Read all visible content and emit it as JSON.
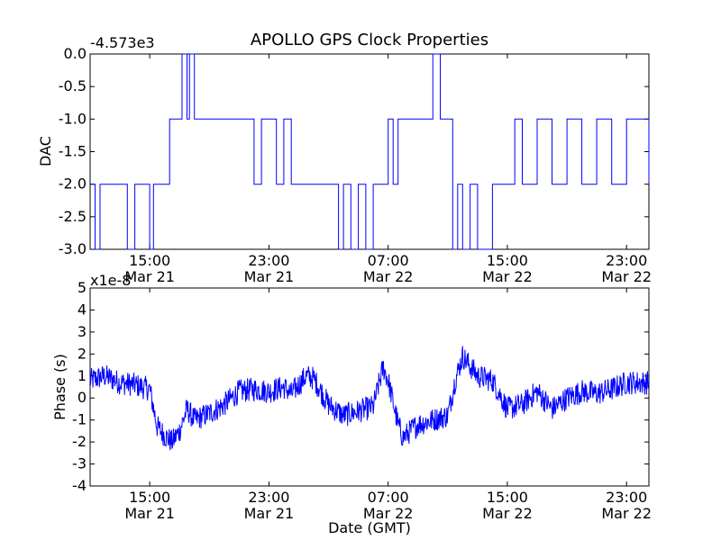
{
  "figure": {
    "title": "APOLLO GPS Clock Properties",
    "xlabel": "Date (GMT)"
  },
  "chart_data": [
    {
      "type": "line",
      "title": "APOLLO GPS Clock Properties",
      "ylabel": "DAC",
      "offset_text": "-4.573e3",
      "x_range": [
        "Mar 21 11:00",
        "Mar 23 00:30"
      ],
      "ylim": [
        -3.0,
        0.0
      ],
      "yticks": [
        0.0,
        -0.5,
        -1.0,
        -1.5,
        -2.0,
        -2.5,
        -3.0
      ],
      "ytick_labels": [
        "0.0",
        "-0.5",
        "-1.0",
        "-1.5",
        "-2.0",
        "-2.5",
        "-3.0"
      ],
      "xticks": [
        {
          "time": "15:00",
          "date": "Mar 21"
        },
        {
          "time": "23:00",
          "date": "Mar 21"
        },
        {
          "time": "07:00",
          "date": "Mar 22"
        },
        {
          "time": "15:00",
          "date": "Mar 22"
        },
        {
          "time": "23:00",
          "date": "Mar 22"
        }
      ],
      "grid": false,
      "series": [
        {
          "color": "#0000ff",
          "x": [
            "Mar 21 11:00",
            "Mar 21 11:20",
            "Mar 21 11:40",
            "Mar 21 12:10",
            "Mar 21 13:30",
            "Mar 21 14:00",
            "Mar 21 14:30",
            "Mar 21 15:00",
            "Mar 21 15:15",
            "Mar 21 16:00",
            "Mar 21 16:20",
            "Mar 21 17:00",
            "Mar 21 17:10",
            "Mar 21 17:30",
            "Mar 21 17:40",
            "Mar 21 18:00",
            "Mar 21 21:30",
            "Mar 21 22:00",
            "Mar 21 22:30",
            "Mar 21 23:00",
            "Mar 21 23:30",
            "Mar 22 00:00",
            "Mar 22 00:30",
            "Mar 22 01:00",
            "Mar 22 01:30",
            "Mar 22 02:00",
            "Mar 22 03:00",
            "Mar 22 03:40",
            "Mar 22 04:00",
            "Mar 22 04:30",
            "Mar 22 05:00",
            "Mar 22 05:30",
            "Mar 22 06:00",
            "Mar 22 06:40",
            "Mar 22 07:00",
            "Mar 22 07:20",
            "Mar 22 07:40",
            "Mar 22 08:00",
            "Mar 22 08:30",
            "Mar 22 09:00",
            "Mar 22 09:40",
            "Mar 22 10:00",
            "Mar 22 10:30",
            "Mar 22 11:00",
            "Mar 22 11:20",
            "Mar 22 11:40",
            "Mar 22 12:00",
            "Mar 22 12:30",
            "Mar 22 13:00",
            "Mar 22 14:00",
            "Mar 22 15:00",
            "Mar 22 15:30",
            "Mar 22 16:00",
            "Mar 22 17:00",
            "Mar 22 18:00",
            "Mar 22 19:00",
            "Mar 22 20:00",
            "Mar 22 21:00",
            "Mar 22 22:00",
            "Mar 22 23:00",
            "Mar 23 00:30"
          ],
          "y": [
            -2.0,
            -3.0,
            -2.0,
            -2.0,
            -3.0,
            -2.0,
            -2.0,
            -3.0,
            -2.0,
            -2.0,
            -1.0,
            -1.0,
            0.0,
            -1.0,
            0.0,
            -1.0,
            -1.0,
            -2.0,
            -1.0,
            -1.0,
            -2.0,
            -1.0,
            -2.0,
            -2.0,
            -2.0,
            -2.0,
            -2.0,
            -3.0,
            -2.0,
            -3.0,
            -2.0,
            -3.0,
            -2.0,
            -2.0,
            -1.0,
            -2.0,
            -1.0,
            -1.0,
            -1.0,
            -1.0,
            -1.0,
            0.0,
            -1.0,
            -1.0,
            -3.0,
            -2.0,
            -3.0,
            -2.0,
            -3.0,
            -2.0,
            -2.0,
            -1.0,
            -2.0,
            -1.0,
            -2.0,
            -1.0,
            -2.0,
            -1.0,
            -2.0,
            -1.0,
            -2.0
          ]
        }
      ]
    },
    {
      "type": "line",
      "xlabel": "Date (GMT)",
      "ylabel": "Phase (s)",
      "offset_text": "x1e-8",
      "x_range": [
        "Mar 21 11:00",
        "Mar 23 00:30"
      ],
      "ylim": [
        -4,
        5
      ],
      "yticks": [
        5,
        4,
        3,
        2,
        1,
        0,
        -1,
        -2,
        -3,
        -4
      ],
      "ytick_labels": [
        "5",
        "4",
        "3",
        "2",
        "1",
        "0",
        "-1",
        "-2",
        "-3",
        "-4"
      ],
      "xticks": [
        {
          "time": "15:00",
          "date": "Mar 21"
        },
        {
          "time": "23:00",
          "date": "Mar 21"
        },
        {
          "time": "07:00",
          "date": "Mar 22"
        },
        {
          "time": "15:00",
          "date": "Mar 22"
        },
        {
          "time": "23:00",
          "date": "Mar 22"
        }
      ],
      "grid": false,
      "series": [
        {
          "color": "#0000ff",
          "x": [
            "Mar 21 11:00",
            "Mar 21 12:00",
            "Mar 21 13:00",
            "Mar 21 14:00",
            "Mar 21 15:00",
            "Mar 21 15:30",
            "Mar 21 16:00",
            "Mar 21 16:30",
            "Mar 21 17:00",
            "Mar 21 17:30",
            "Mar 21 18:00",
            "Mar 21 19:00",
            "Mar 21 20:00",
            "Mar 21 21:00",
            "Mar 21 22:00",
            "Mar 21 23:00",
            "Mar 22 00:00",
            "Mar 22 00:30",
            "Mar 22 01:00",
            "Mar 22 01:30",
            "Mar 22 02:00",
            "Mar 22 03:00",
            "Mar 22 04:00",
            "Mar 22 05:00",
            "Mar 22 06:00",
            "Mar 22 06:40",
            "Mar 22 07:00",
            "Mar 22 07:40",
            "Mar 22 08:00",
            "Mar 22 09:00",
            "Mar 22 10:00",
            "Mar 22 11:00",
            "Mar 22 11:30",
            "Mar 22 12:00",
            "Mar 22 13:00",
            "Mar 22 14:00",
            "Mar 22 15:00",
            "Mar 22 16:00",
            "Mar 22 17:00",
            "Mar 22 18:00",
            "Mar 22 19:00",
            "Mar 22 20:00",
            "Mar 22 21:00",
            "Mar 22 22:00",
            "Mar 22 23:00",
            "Mar 23 00:30"
          ],
          "y": [
            0.8,
            1.0,
            0.7,
            0.6,
            0.4,
            -1.3,
            -1.7,
            -2.0,
            -1.5,
            -0.5,
            -1.0,
            -0.7,
            -0.3,
            0.3,
            0.4,
            0.3,
            0.5,
            0.2,
            0.6,
            1.0,
            0.9,
            -0.3,
            -0.8,
            -0.6,
            -0.4,
            1.4,
            0.8,
            -1.2,
            -1.8,
            -1.2,
            -1.0,
            -0.8,
            0.8,
            1.9,
            1.0,
            0.8,
            -0.5,
            -0.3,
            0.3,
            -0.5,
            0.0,
            0.3,
            0.2,
            0.4,
            0.7,
            0.7
          ]
        }
      ]
    }
  ]
}
